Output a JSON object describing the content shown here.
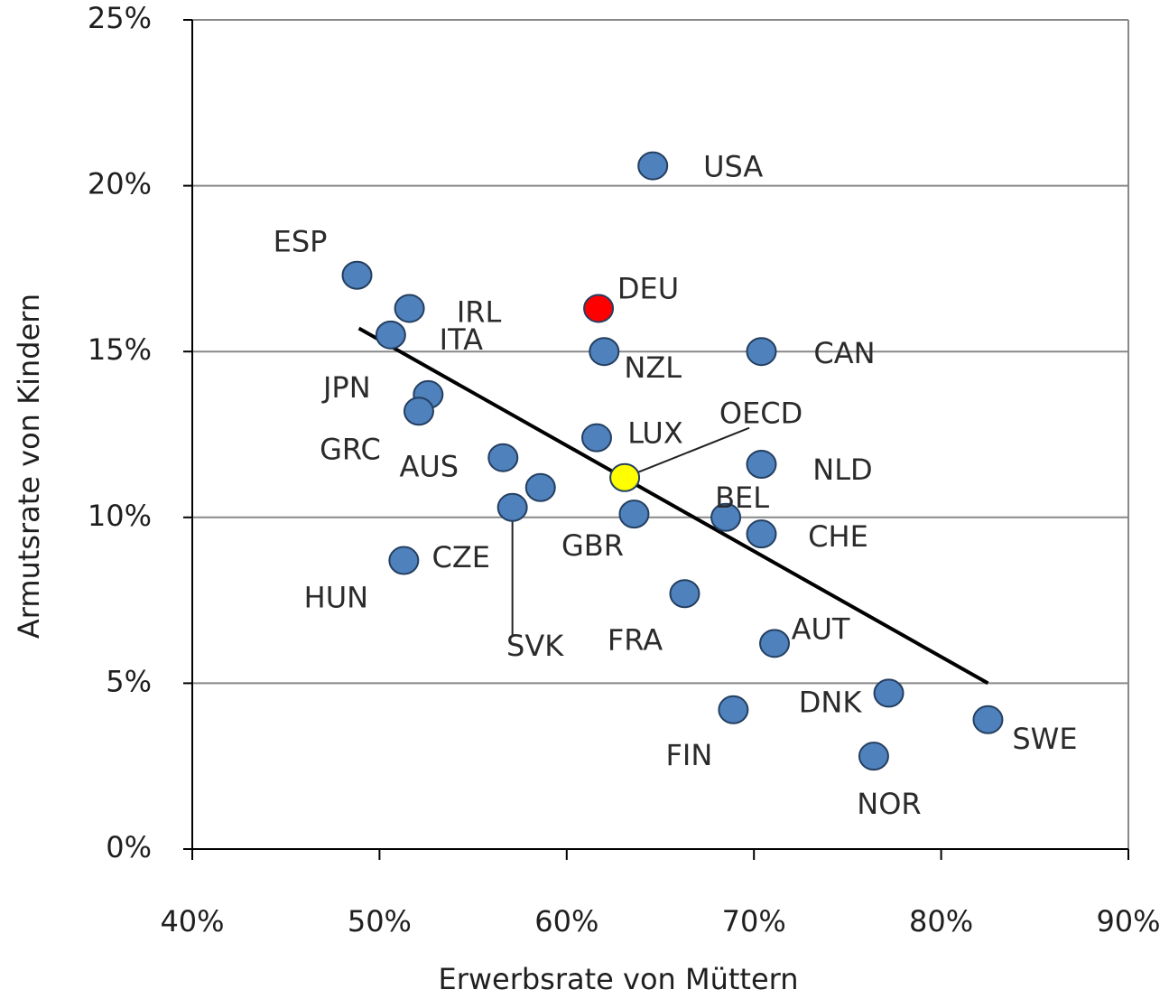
{
  "chart_data": {
    "type": "scatter",
    "x_label": "Erwerbsrate von Müttern",
    "y_label": "Armutsrate von Kindern",
    "labels": [
      "USA",
      "ESP",
      "IRL",
      "ITA",
      "JPN",
      "GRC",
      "AUS",
      "CZE",
      "SVK",
      "HUN",
      "DEU",
      "NZL",
      "CAN",
      "LUX",
      "OECD",
      "NLD",
      "BEL",
      "CHE",
      "GBR",
      "FRA",
      "AUT",
      "DNK",
      "FIN",
      "SWE",
      "NOR"
    ],
    "x": [
      64.6,
      48.8,
      51.6,
      50.6,
      52.6,
      52.1,
      56.6,
      58.6,
      57.1,
      51.3,
      61.7,
      62.0,
      70.4,
      61.6,
      63.1,
      70.4,
      68.5,
      70.4,
      63.6,
      66.3,
      71.1,
      77.2,
      68.9,
      82.5,
      76.4
    ],
    "values": [
      20.6,
      17.3,
      16.3,
      15.5,
      13.7,
      13.2,
      11.8,
      10.9,
      10.3,
      8.7,
      16.3,
      15.0,
      15.0,
      12.4,
      11.2,
      11.6,
      10.0,
      9.5,
      10.1,
      7.7,
      6.2,
      4.7,
      4.2,
      3.9,
      2.8
    ],
    "colors": [
      "#4f81bd",
      "#4f81bd",
      "#4f81bd",
      "#4f81bd",
      "#4f81bd",
      "#4f81bd",
      "#4f81bd",
      "#4f81bd",
      "#4f81bd",
      "#4f81bd",
      "#ff0000",
      "#4f81bd",
      "#4f81bd",
      "#4f81bd",
      "#ffff00",
      "#4f81bd",
      "#4f81bd",
      "#4f81bd",
      "#4f81bd",
      "#4f81bd",
      "#4f81bd",
      "#4f81bd",
      "#4f81bd",
      "#4f81bd",
      "#4f81bd"
    ],
    "trendline": {
      "x": [
        48.9,
        82.5
      ],
      "values": [
        15.7,
        5.0
      ],
      "color": "#000000"
    },
    "xlim": [
      40,
      90
    ],
    "ylim": [
      0,
      25
    ],
    "xticks": [
      {
        "value": 40,
        "label": "40%"
      },
      {
        "value": 50,
        "label": "50%"
      },
      {
        "value": 60,
        "label": "60%"
      },
      {
        "value": 70,
        "label": "70%"
      },
      {
        "value": 80,
        "label": "80%"
      },
      {
        "value": 90,
        "label": "90%"
      }
    ],
    "yticks": [
      {
        "value": 0,
        "label": "0%"
      },
      {
        "value": 5,
        "label": "5%"
      },
      {
        "value": 10,
        "label": "10%"
      },
      {
        "value": 15,
        "label": "15%"
      },
      {
        "value": 20,
        "label": "20%"
      },
      {
        "value": 25,
        "label": "25%"
      }
    ],
    "grid": true
  }
}
